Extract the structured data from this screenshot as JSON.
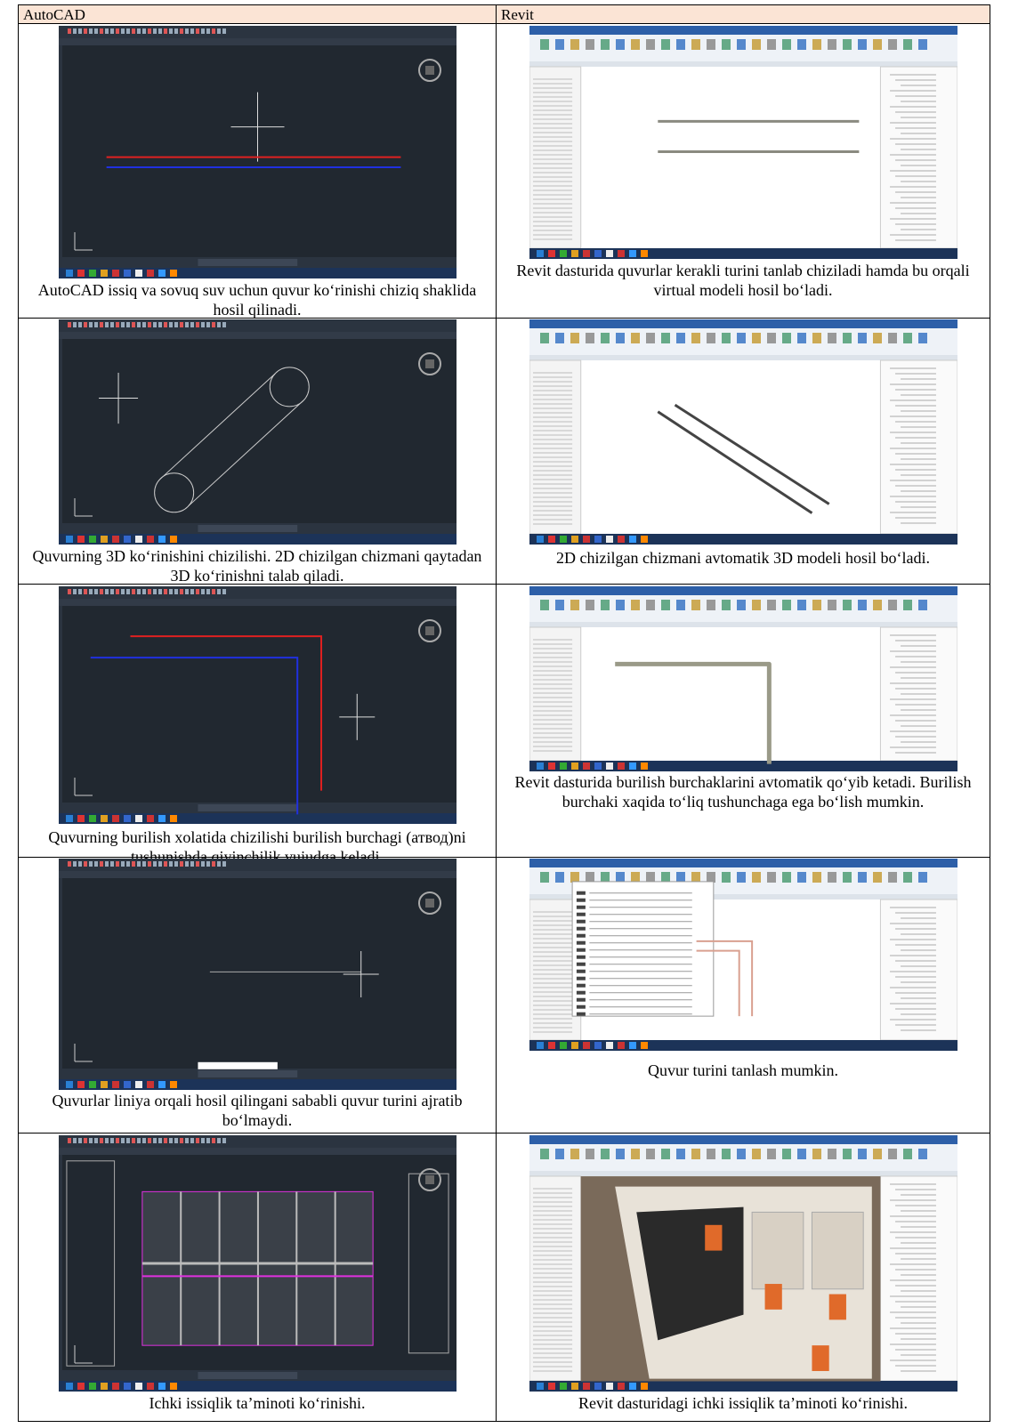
{
  "header": {
    "left": "AutoCAD",
    "right": "Revit"
  },
  "rows": [
    {
      "left_caption": "AutoCAD issiq va sovuq suv uchun quvur ko‘rinishi chiziq shaklida hosil qilinadi.",
      "right_caption": "Revit dasturida quvurlar kerakli turini tanlab chiziladi hamda bu orqali virtual modeli hosil bo‘ladi."
    },
    {
      "left_caption": "Quvurning 3D ko‘rinishini chizilishi. 2D chizilgan chizmani qaytadan 3D ko‘rinishni talab qiladi.",
      "right_caption": "2D chizilgan chizmani avtomatik 3D modeli hosil bo‘ladi."
    },
    {
      "left_caption": "Quvurning burilish xolatida chizilishi burilish burchagi (атвод)ni tushunishda qiyinchilik vujudga keladi.",
      "right_caption": "Revit dasturida burilish burchaklarini avtomatik qo‘yib ketadi. Burilish burchaki xaqida to‘liq tushunchaga ega bo‘lish mumkin."
    },
    {
      "left_caption": "Quvurlar liniya orqali hosil qilingani sababli quvur turini ajratib bo‘lmaydi.",
      "right_caption": "Quvur turini tanlash mumkin."
    },
    {
      "left_caption": "Ichki issiqlik ta’minoti ko‘rinishi.",
      "right_caption": "Revit dasturidagi ichki issiqlik ta’minoti ko‘rinishi."
    }
  ]
}
